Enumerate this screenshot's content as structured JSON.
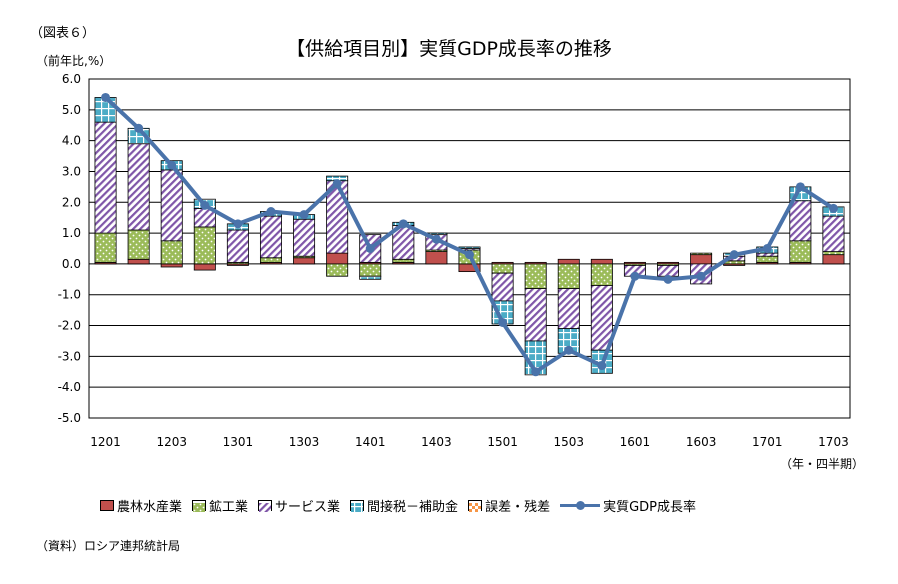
{
  "figure_label": "（図表６）",
  "unit_label": "（前年比,%）",
  "period_note": "（年・四半期）",
  "source_note": "（資料）ロシア連邦統計局",
  "chart_data": {
    "type": "bar",
    "title": "【供給項目別】実質GDP成長率の推移",
    "stacked": true,
    "categories": [
      "1201",
      "1202",
      "1203",
      "1204",
      "1301",
      "1302",
      "1303",
      "1304",
      "1401",
      "1402",
      "1403",
      "1404",
      "1501",
      "1502",
      "1503",
      "1504",
      "1601",
      "1602",
      "1603",
      "1604",
      "1701",
      "1702",
      "1703"
    ],
    "x_tick_labels": [
      "1201",
      "1203",
      "1301",
      "1303",
      "1401",
      "1403",
      "1501",
      "1503",
      "1601",
      "1603",
      "1701",
      "1703"
    ],
    "ylim": [
      -5.0,
      6.0
    ],
    "y_ticks": [
      "6.0",
      "5.0",
      "4.0",
      "3.0",
      "2.0",
      "1.0",
      "0.0",
      "-1.0",
      "-2.0",
      "-3.0",
      "-4.0",
      "-5.0"
    ],
    "grid": true,
    "legend_position": "bottom",
    "series": [
      {
        "name": "農林水産業",
        "color": "#c0504d",
        "pattern": "solid",
        "values": [
          0.05,
          0.15,
          -0.1,
          -0.2,
          -0.05,
          0.05,
          0.2,
          0.35,
          0.05,
          0.05,
          0.4,
          -0.25,
          0.05,
          0.05,
          0.15,
          0.15,
          0.05,
          0.05,
          0.3,
          -0.05,
          0.05,
          0.05,
          0.3
        ]
      },
      {
        "name": "鉱工業",
        "color": "#9bbb59",
        "pattern": "dots",
        "values": [
          0.95,
          0.95,
          0.75,
          1.2,
          0.05,
          0.15,
          0.05,
          -0.4,
          -0.4,
          0.1,
          0.05,
          0.45,
          -0.3,
          -0.8,
          -0.8,
          -0.7,
          -0.05,
          -0.05,
          0.05,
          0.1,
          0.2,
          0.7,
          0.1
        ]
      },
      {
        "name": "サービス業",
        "color": "#7f56a8",
        "pattern": "hatch",
        "values": [
          3.6,
          2.8,
          2.3,
          0.6,
          1.05,
          1.35,
          1.2,
          2.35,
          0.9,
          1.1,
          0.5,
          0.05,
          -0.9,
          -1.7,
          -1.3,
          -2.1,
          -0.35,
          -0.35,
          -0.65,
          0.15,
          0.1,
          1.3,
          1.15
        ]
      },
      {
        "name": "間接税－補助金",
        "color": "#4bacc6",
        "pattern": "grid",
        "values": [
          0.8,
          0.5,
          0.3,
          0.3,
          0.2,
          0.15,
          0.15,
          0.15,
          -0.1,
          0.1,
          0.05,
          0.05,
          -0.75,
          -1.1,
          -0.8,
          -0.75,
          0.0,
          0.0,
          0.0,
          0.1,
          0.2,
          0.45,
          0.3
        ]
      },
      {
        "name": "誤差・残差",
        "color": "#f79646",
        "pattern": "check",
        "values": [
          0.0,
          0.0,
          0.0,
          0.0,
          0.0,
          0.0,
          0.0,
          0.0,
          0.0,
          0.0,
          0.0,
          0.0,
          0.0,
          0.0,
          0.0,
          0.0,
          0.0,
          0.0,
          0.0,
          0.0,
          0.0,
          0.0,
          0.0
        ]
      },
      {
        "name": "実質GDP成長率",
        "color": "#4a73aa",
        "type": "line",
        "values": [
          5.4,
          4.4,
          3.2,
          1.9,
          1.3,
          1.7,
          1.6,
          2.6,
          0.5,
          1.3,
          0.8,
          0.3,
          -1.9,
          -3.5,
          -2.8,
          -3.3,
          -0.4,
          -0.5,
          -0.4,
          0.3,
          0.5,
          2.5,
          1.8
        ]
      }
    ]
  }
}
